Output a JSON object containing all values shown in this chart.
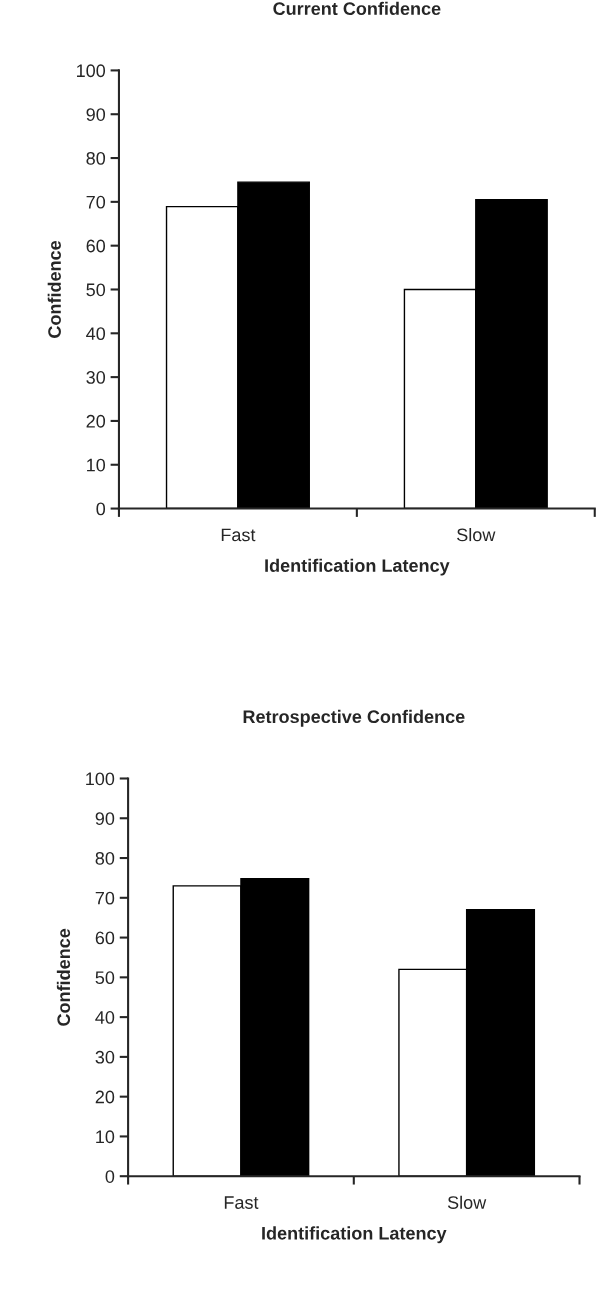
{
  "chart_data": [
    {
      "type": "bar",
      "title": "Current Confidence",
      "xlabel": "Identification Latency",
      "ylabel": "Confidence",
      "categories": [
        "Fast",
        "Slow"
      ],
      "series": [
        {
          "color": "#ffffff",
          "values": [
            68.9,
            50
          ]
        },
        {
          "color": "#000000",
          "values": [
            74.5,
            70.5
          ]
        }
      ],
      "ylim": [
        0,
        100
      ],
      "yticks": [
        0,
        10,
        20,
        30,
        40,
        50,
        60,
        70,
        80,
        90,
        100
      ]
    },
    {
      "type": "bar",
      "title": "Retrospective Confidence",
      "xlabel": "Identification Latency",
      "ylabel": "Confidence",
      "categories": [
        "Fast",
        "Slow"
      ],
      "series": [
        {
          "color": "#ffffff",
          "values": [
            73,
            52
          ]
        },
        {
          "color": "#000000",
          "values": [
            74.8,
            67
          ]
        }
      ],
      "ylim": [
        0,
        100
      ],
      "yticks": [
        0,
        10,
        20,
        30,
        40,
        50,
        60,
        70,
        80,
        90,
        100
      ]
    }
  ]
}
